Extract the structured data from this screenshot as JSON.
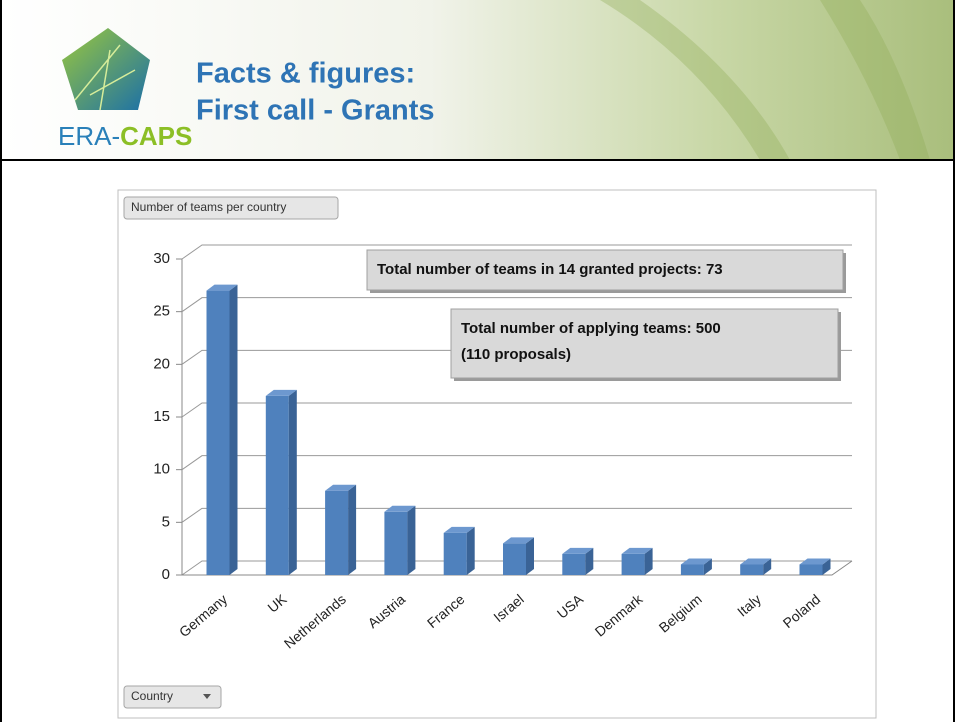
{
  "header": {
    "logo": [
      "ERA-",
      "CAPS"
    ],
    "title_lines": [
      "Facts & figures:",
      "First call - Grants"
    ]
  },
  "chart_data": {
    "type": "bar3d",
    "field_buttons": {
      "values": "Number of teams per country",
      "axis": "Country"
    },
    "categories": [
      "Germany",
      "UK",
      "Netherlands",
      "Austria",
      "France",
      "Israel",
      "USA",
      "Denmark",
      "Belgium",
      "Italy",
      "Poland"
    ],
    "values": [
      27,
      17,
      8,
      6,
      4,
      3,
      2,
      2,
      1,
      1,
      1
    ],
    "color": "#4f81bd",
    "ylim": [
      0,
      30
    ],
    "yticks": [
      0,
      5,
      10,
      15,
      20,
      25,
      30
    ],
    "grid": true,
    "annotations": [
      [
        "Total number of teams in 14 granted projects: 73"
      ],
      [
        "Total number of applying teams: 500",
        "(110 proposals)"
      ]
    ]
  }
}
